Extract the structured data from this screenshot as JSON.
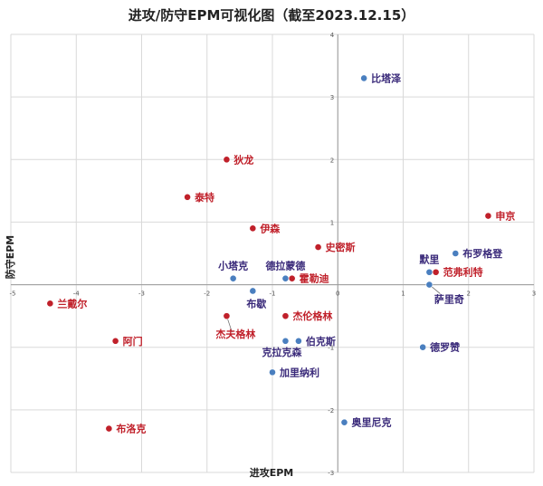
{
  "chart_data": {
    "type": "scatter",
    "title": "进攻/防守EPM可视化图（截至2023.12.15）",
    "xlabel": "进攻EPM",
    "ylabel": "防守EPM",
    "xlim": [
      -5,
      3
    ],
    "ylim": [
      -3,
      4
    ],
    "x_ticks": [
      "-5",
      "-4",
      "-3",
      "-2",
      "-1",
      "0",
      "1",
      "2",
      "3"
    ],
    "y_ticks": [
      "4",
      "3",
      "2",
      "1",
      "0",
      "-1",
      "-2",
      "-3"
    ],
    "grid": true,
    "colors": {
      "red": "#c0202a",
      "blue": "#4a7fbf",
      "red_label": "#c0202a",
      "blue_label": "#3a2a7a"
    },
    "points": [
      {
        "name": "比塔泽",
        "x": 0.4,
        "y": 3.3,
        "color": "blue",
        "label_pos": "right"
      },
      {
        "name": "狄龙",
        "x": -1.7,
        "y": 2.0,
        "color": "red",
        "label_pos": "right"
      },
      {
        "name": "泰特",
        "x": -2.3,
        "y": 1.4,
        "color": "red",
        "label_pos": "right"
      },
      {
        "name": "伊森",
        "x": -1.3,
        "y": 0.9,
        "color": "red",
        "label_pos": "right"
      },
      {
        "name": "申京",
        "x": 2.3,
        "y": 1.1,
        "color": "red",
        "label_pos": "right"
      },
      {
        "name": "史密斯",
        "x": -0.3,
        "y": 0.6,
        "color": "red",
        "label_pos": "right"
      },
      {
        "name": "布罗格登",
        "x": 1.8,
        "y": 0.5,
        "color": "blue",
        "label_pos": "right"
      },
      {
        "name": "默里",
        "x": 1.4,
        "y": 0.2,
        "color": "blue",
        "label_pos": "above"
      },
      {
        "name": "范弗利特",
        "x": 1.5,
        "y": 0.2,
        "color": "red",
        "label_pos": "right"
      },
      {
        "name": "萨里奇",
        "x": 1.4,
        "y": 0.0,
        "color": "blue",
        "label_pos": "below"
      },
      {
        "name": "小塔克",
        "x": -1.6,
        "y": 0.1,
        "color": "blue",
        "label_pos": "above"
      },
      {
        "name": "德拉蒙德",
        "x": -0.8,
        "y": 0.1,
        "color": "blue",
        "label_pos": "above"
      },
      {
        "name": "霍勒迪",
        "x": -0.7,
        "y": 0.1,
        "color": "red",
        "label_pos": "right"
      },
      {
        "name": "布歇",
        "x": -1.3,
        "y": -0.1,
        "color": "blue",
        "label_pos": "below"
      },
      {
        "name": "兰戴尔",
        "x": -4.4,
        "y": -0.3,
        "color": "red",
        "label_pos": "right"
      },
      {
        "name": "杰夫格林",
        "x": -1.7,
        "y": -0.5,
        "color": "red",
        "label_pos": "below"
      },
      {
        "name": "杰伦格林",
        "x": -0.8,
        "y": -0.5,
        "color": "red",
        "label_pos": "right"
      },
      {
        "name": "阿门",
        "x": -3.4,
        "y": -0.9,
        "color": "red",
        "label_pos": "right"
      },
      {
        "name": "克拉克森",
        "x": -0.8,
        "y": -0.9,
        "color": "blue",
        "label_pos": "below"
      },
      {
        "name": "伯克斯",
        "x": -0.6,
        "y": -0.9,
        "color": "blue",
        "label_pos": "right"
      },
      {
        "name": "德罗赞",
        "x": 1.3,
        "y": -1.0,
        "color": "blue",
        "label_pos": "right"
      },
      {
        "name": "加里纳利",
        "x": -1.0,
        "y": -1.4,
        "color": "blue",
        "label_pos": "right"
      },
      {
        "name": "奥里尼克",
        "x": 0.1,
        "y": -2.2,
        "color": "blue",
        "label_pos": "right"
      },
      {
        "name": "布洛克",
        "x": -3.5,
        "y": -2.3,
        "color": "red",
        "label_pos": "right"
      }
    ]
  }
}
